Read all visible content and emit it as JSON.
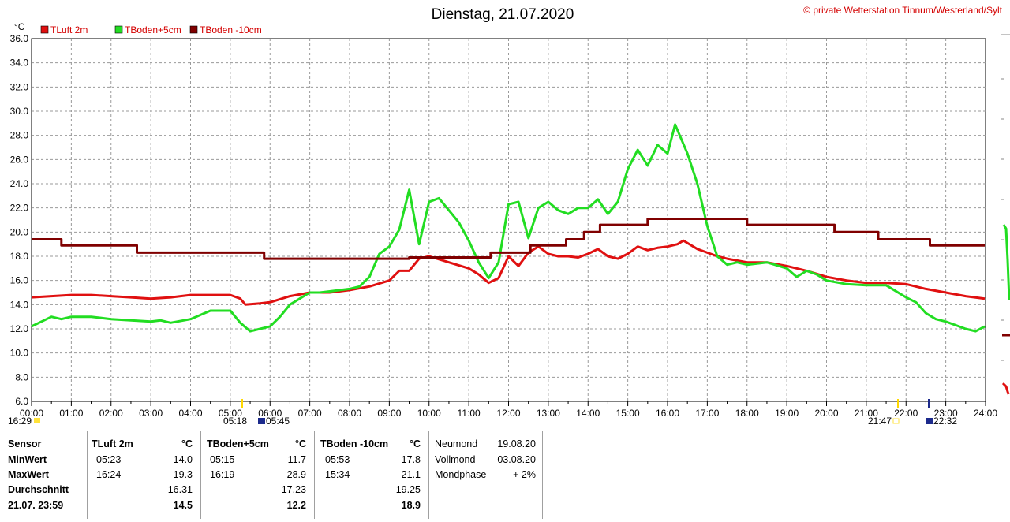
{
  "header": {
    "title": "Dienstag, 21.07.2020",
    "copyright": "© private Wetterstation Tinnum/Westerland/Sylt",
    "unit": "°C"
  },
  "legend": [
    {
      "label": "TLuft 2m",
      "color": "#e01010"
    },
    {
      "label": "TBoden+5cm",
      "color": "#22dd22"
    },
    {
      "label": "TBoden -10cm",
      "color": "#800000"
    }
  ],
  "sun": {
    "sunset_prev": "16:29",
    "sunrise": "05:18",
    "moonrise": "05:45",
    "sunset": "21:47",
    "moonset": "22:32"
  },
  "chart_data": {
    "type": "line",
    "title": "Dienstag, 21.07.2020",
    "ylabel": "°C",
    "ylim": [
      6,
      36
    ],
    "yticks": [
      "6.0",
      "8.0",
      "10.0",
      "12.0",
      "14.0",
      "16.0",
      "18.0",
      "20.0",
      "22.0",
      "24.0",
      "26.0",
      "28.0",
      "30.0",
      "32.0",
      "34.0",
      "36.0"
    ],
    "xlabels": [
      "00:00",
      "01:00",
      "02:00",
      "03:00",
      "04:00",
      "05:00",
      "06:00",
      "07:00",
      "08:00",
      "09:00",
      "10:00",
      "11:00",
      "12:00",
      "13:00",
      "14:00",
      "15:00",
      "16:00",
      "17:00",
      "18:00",
      "19:00",
      "20:00",
      "21:00",
      "22:00",
      "23:00",
      "24:00"
    ],
    "grid": true,
    "legend_position": "top-left",
    "series": [
      {
        "name": "TLuft 2m",
        "color": "#e01010",
        "x": [
          0,
          0.5,
          1,
          1.5,
          2,
          2.5,
          3,
          3.5,
          4,
          4.5,
          5,
          5.25,
          5.38,
          5.75,
          6,
          6.5,
          7,
          7.5,
          8,
          8.5,
          9,
          9.25,
          9.5,
          9.75,
          10,
          10.5,
          11,
          11.25,
          11.5,
          11.75,
          12,
          12.25,
          12.5,
          12.75,
          13,
          13.25,
          13.5,
          13.75,
          14,
          14.25,
          14.5,
          14.75,
          15,
          15.25,
          15.5,
          15.75,
          16,
          16.25,
          16.4,
          16.75,
          17,
          17.25,
          17.5,
          18,
          18.5,
          19,
          19.5,
          20,
          20.5,
          21,
          21.5,
          22,
          22.5,
          23,
          23.5,
          23.98
        ],
        "y": [
          14.6,
          14.7,
          14.8,
          14.8,
          14.7,
          14.6,
          14.5,
          14.6,
          14.8,
          14.8,
          14.8,
          14.5,
          14.0,
          14.1,
          14.2,
          14.7,
          15.0,
          15.0,
          15.2,
          15.5,
          16.0,
          16.8,
          16.8,
          17.8,
          18.0,
          17.5,
          17.0,
          16.5,
          15.8,
          16.2,
          18.0,
          17.2,
          18.3,
          18.8,
          18.2,
          18.0,
          18.0,
          17.9,
          18.2,
          18.6,
          18.0,
          17.8,
          18.2,
          18.8,
          18.5,
          18.7,
          18.8,
          19.0,
          19.3,
          18.6,
          18.3,
          18.0,
          17.8,
          17.5,
          17.5,
          17.2,
          16.8,
          16.3,
          16.0,
          15.8,
          15.8,
          15.7,
          15.3,
          15.0,
          14.7,
          14.5
        ]
      },
      {
        "name": "TBoden+5cm",
        "color": "#22dd22",
        "x": [
          0,
          0.25,
          0.5,
          0.75,
          1,
          1.5,
          2,
          2.5,
          3,
          3.25,
          3.5,
          4,
          4.5,
          5,
          5.25,
          5.5,
          5.75,
          6,
          6.25,
          6.5,
          7,
          7.25,
          7.5,
          8,
          8.25,
          8.5,
          8.75,
          9,
          9.25,
          9.5,
          9.75,
          10,
          10.25,
          10.5,
          10.75,
          11,
          11.25,
          11.5,
          11.75,
          12,
          12.25,
          12.5,
          12.75,
          13,
          13.25,
          13.5,
          13.75,
          14,
          14.25,
          14.5,
          14.75,
          15,
          15.25,
          15.5,
          15.75,
          16,
          16.19,
          16.5,
          16.75,
          17,
          17.25,
          17.5,
          17.75,
          18,
          18.5,
          19,
          19.25,
          19.5,
          19.75,
          20,
          20.5,
          21,
          21.5,
          22,
          22.25,
          22.5,
          22.75,
          23,
          23.25,
          23.5,
          23.75,
          23.98
        ],
        "y": [
          12.2,
          12.6,
          13.0,
          12.8,
          13.0,
          13.0,
          12.8,
          12.7,
          12.6,
          12.7,
          12.5,
          12.8,
          13.5,
          13.5,
          12.5,
          11.8,
          12.0,
          12.2,
          13.0,
          14.0,
          15.0,
          15.0,
          15.1,
          15.3,
          15.5,
          16.3,
          18.2,
          18.8,
          20.2,
          23.5,
          19.0,
          22.5,
          22.8,
          21.8,
          20.8,
          19.3,
          17.5,
          16.2,
          17.5,
          22.3,
          22.5,
          19.5,
          22.0,
          22.5,
          21.8,
          21.5,
          22.0,
          22.0,
          22.7,
          21.5,
          22.5,
          25.2,
          26.8,
          25.5,
          27.2,
          26.5,
          28.9,
          26.5,
          24.0,
          20.5,
          18.0,
          17.3,
          17.5,
          17.3,
          17.5,
          17.0,
          16.3,
          16.8,
          16.5,
          16.0,
          15.7,
          15.6,
          15.6,
          14.6,
          14.2,
          13.3,
          12.8,
          12.6,
          12.3,
          12.0,
          11.8,
          12.2
        ]
      },
      {
        "name": "TBoden -10cm",
        "color": "#800000",
        "x": [
          0,
          0.75,
          0.75,
          2.65,
          2.65,
          5.85,
          5.85,
          9.5,
          9.5,
          11.55,
          11.55,
          12.55,
          12.55,
          13.45,
          13.45,
          13.9,
          13.9,
          14.3,
          14.3,
          15.5,
          15.5,
          16.3,
          16.3,
          17.0,
          17.0,
          18.0,
          18.0,
          19.1,
          19.1,
          20.2,
          20.2,
          21.3,
          21.3,
          22.6,
          22.6,
          23.98
        ],
        "y": [
          19.4,
          19.4,
          18.9,
          18.9,
          18.3,
          18.3,
          17.8,
          17.8,
          17.9,
          17.9,
          18.3,
          18.3,
          18.9,
          18.9,
          19.4,
          19.4,
          20.0,
          20.0,
          20.6,
          20.6,
          21.1,
          21.1,
          21.1,
          21.1,
          21.1,
          21.1,
          20.6,
          20.6,
          20.6,
          20.6,
          20.0,
          20.0,
          19.4,
          19.4,
          18.9,
          18.9
        ]
      }
    ]
  },
  "stats": {
    "sensor_col": {
      "header": "Sensor",
      "rows": [
        "MinWert",
        "MaxWert",
        "Durchschnitt",
        "21.07. 23:59"
      ]
    },
    "sensors": [
      {
        "name": "TLuft 2m",
        "unit": "°C",
        "min_time": "05:23",
        "min_val": "14.0",
        "max_time": "16:24",
        "max_val": "19.3",
        "avg": "16.31",
        "last": "14.5"
      },
      {
        "name": "TBoden+5cm",
        "unit": "°C",
        "min_time": "05:15",
        "min_val": "11.7",
        "max_time": "16:19",
        "max_val": "28.9",
        "avg": "17.23",
        "last": "12.2"
      },
      {
        "name": "TBoden -10cm",
        "unit": "°C",
        "min_time": "05:53",
        "min_val": "17.8",
        "max_time": "15:34",
        "max_val": "21.1",
        "avg": "19.25",
        "last": "18.9"
      }
    ],
    "moon": [
      {
        "label": "Neumond",
        "value": "19.08.20"
      },
      {
        "label": "Vollmond",
        "value": "03.08.20"
      },
      {
        "label": "Mondphase",
        "value": "+ 2%"
      }
    ]
  }
}
